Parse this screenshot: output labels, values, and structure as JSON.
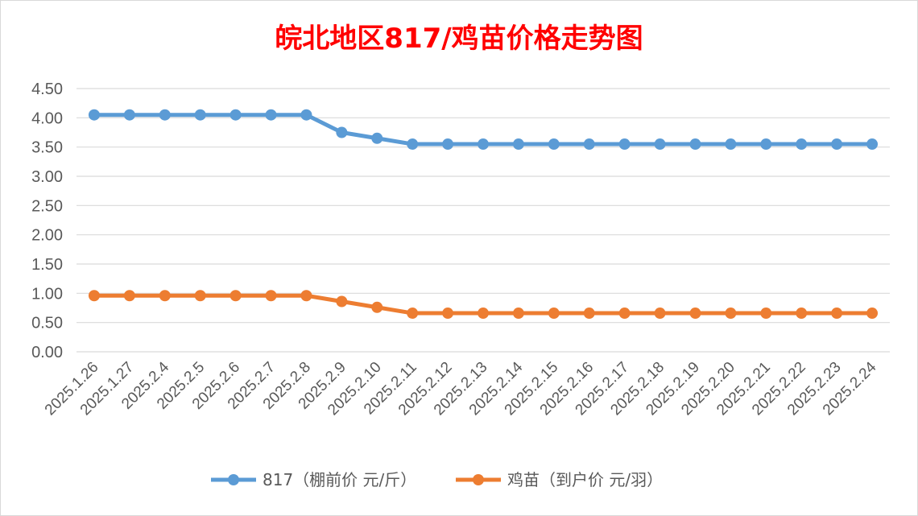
{
  "chart_data": {
    "type": "line",
    "title": "皖北地区817/鸡苗价格走势图",
    "categories": [
      "2025.1.26",
      "2025.1.27",
      "2025.2.4",
      "2025.2.5",
      "2025.2.6",
      "2025.2.7",
      "2025.2.8",
      "2025.2.9",
      "2025.2.10",
      "2025.2.11",
      "2025.2.12",
      "2025.2.13",
      "2025.2.14",
      "2025.2.15",
      "2025.2.16",
      "2025.2.17",
      "2025.2.18",
      "2025.2.19",
      "2025.2.20",
      "2025.2.21",
      "2025.2.22",
      "2025.2.23",
      "2025.2.24"
    ],
    "series": [
      {
        "name": "817（棚前价 元/斤）",
        "color": "#5b9bd5",
        "values": [
          4.05,
          4.05,
          4.05,
          4.05,
          4.05,
          4.05,
          4.05,
          3.75,
          3.65,
          3.55,
          3.55,
          3.55,
          3.55,
          3.55,
          3.55,
          3.55,
          3.55,
          3.55,
          3.55,
          3.55,
          3.55,
          3.55,
          3.55
        ]
      },
      {
        "name": "鸡苗（到户价 元/羽）",
        "color": "#ed7d31",
        "values": [
          0.96,
          0.96,
          0.96,
          0.96,
          0.96,
          0.96,
          0.96,
          0.86,
          0.76,
          0.66,
          0.66,
          0.66,
          0.66,
          0.66,
          0.66,
          0.66,
          0.66,
          0.66,
          0.66,
          0.66,
          0.66,
          0.66,
          0.66
        ]
      }
    ],
    "y_ticks": [
      "0.00",
      "0.50",
      "1.00",
      "1.50",
      "2.00",
      "2.50",
      "3.00",
      "3.50",
      "4.00",
      "4.50"
    ],
    "ylim": [
      0,
      4.5
    ],
    "grid": true,
    "legend_position": "bottom"
  }
}
